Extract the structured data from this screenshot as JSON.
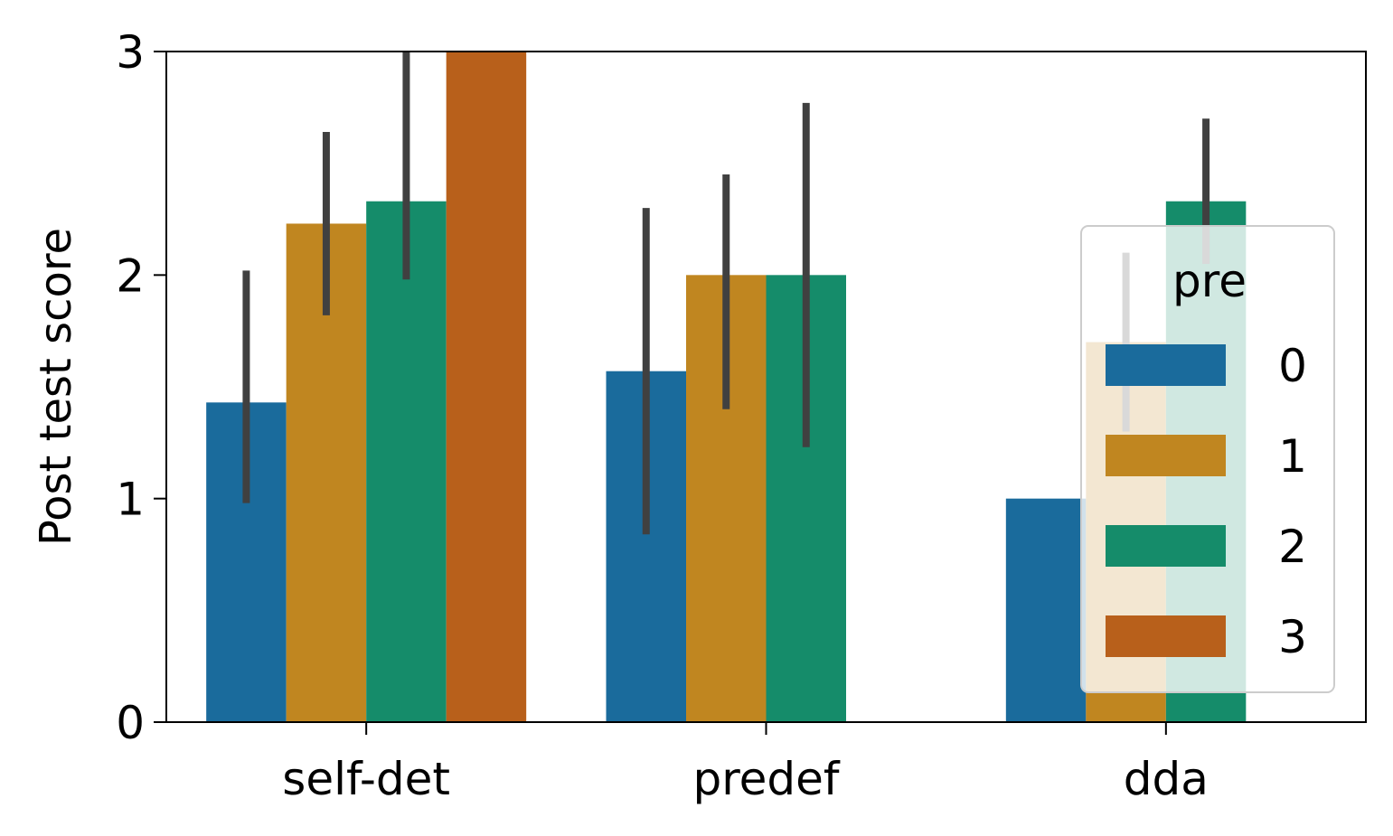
{
  "chart_data": {
    "type": "bar",
    "categories": [
      "self-det",
      "predef",
      "dda"
    ],
    "xlabel": "",
    "ylabel": "Post test score",
    "ylim": [
      0,
      3
    ],
    "yticks": [
      "0",
      "1",
      "2",
      "3"
    ],
    "grid": false,
    "legend": {
      "title": "pre",
      "placement": "right"
    },
    "series": [
      {
        "name": "0",
        "color": "#1a6b9c",
        "values": [
          1.43,
          1.57,
          1.0
        ],
        "ci_low": [
          0.98,
          0.84,
          null
        ],
        "ci_high": [
          2.02,
          2.3,
          null
        ]
      },
      {
        "name": "1",
        "color": "#c08620",
        "values": [
          2.23,
          2.0,
          1.7
        ],
        "ci_low": [
          1.82,
          1.4,
          1.3
        ],
        "ci_high": [
          2.64,
          2.45,
          2.1
        ]
      },
      {
        "name": "2",
        "color": "#158c6a",
        "values": [
          2.33,
          2.0,
          2.33
        ],
        "ci_low": [
          1.98,
          1.23,
          2.05
        ],
        "ci_high": [
          3.0,
          2.77,
          2.7
        ]
      },
      {
        "name": "3",
        "color": "#b8601b",
        "values": [
          3.0,
          null,
          null
        ],
        "ci_low": [
          null,
          null,
          null
        ],
        "ci_high": [
          null,
          null,
          null
        ]
      }
    ]
  }
}
